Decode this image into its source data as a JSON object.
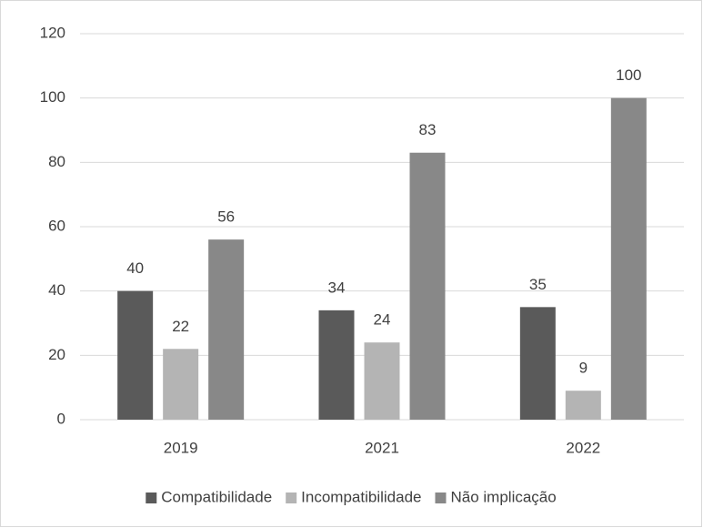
{
  "chart_data": {
    "type": "bar",
    "categories": [
      "2019",
      "2021",
      "2022"
    ],
    "series": [
      {
        "name": "Compatibilidade",
        "color": "#5a5a5a",
        "values": [
          40,
          34,
          35
        ]
      },
      {
        "name": "Incompatibilidade",
        "color": "#b4b4b4",
        "values": [
          22,
          24,
          9
        ]
      },
      {
        "name": "Não implicação",
        "color": "#888888",
        "values": [
          56,
          83,
          100
        ]
      }
    ],
    "ylim": [
      0,
      120
    ],
    "yticks": [
      0,
      20,
      40,
      60,
      80,
      100,
      120
    ],
    "grid": true,
    "legend": "bottom"
  }
}
